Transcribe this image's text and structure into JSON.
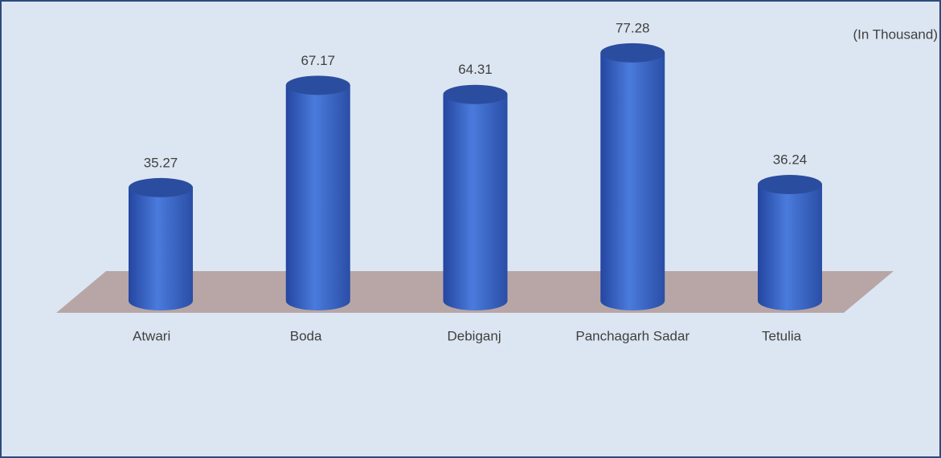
{
  "chart_data": {
    "type": "bar",
    "subtitle": "(In Thousand)",
    "categories": [
      "Atwari",
      "Boda",
      "Debiganj",
      "Panchagarh Sadar",
      "Tetulia"
    ],
    "values": [
      35.27,
      67.17,
      64.31,
      77.28,
      36.24
    ],
    "color": "#3b66c4",
    "ylim": [
      0,
      80
    ]
  }
}
